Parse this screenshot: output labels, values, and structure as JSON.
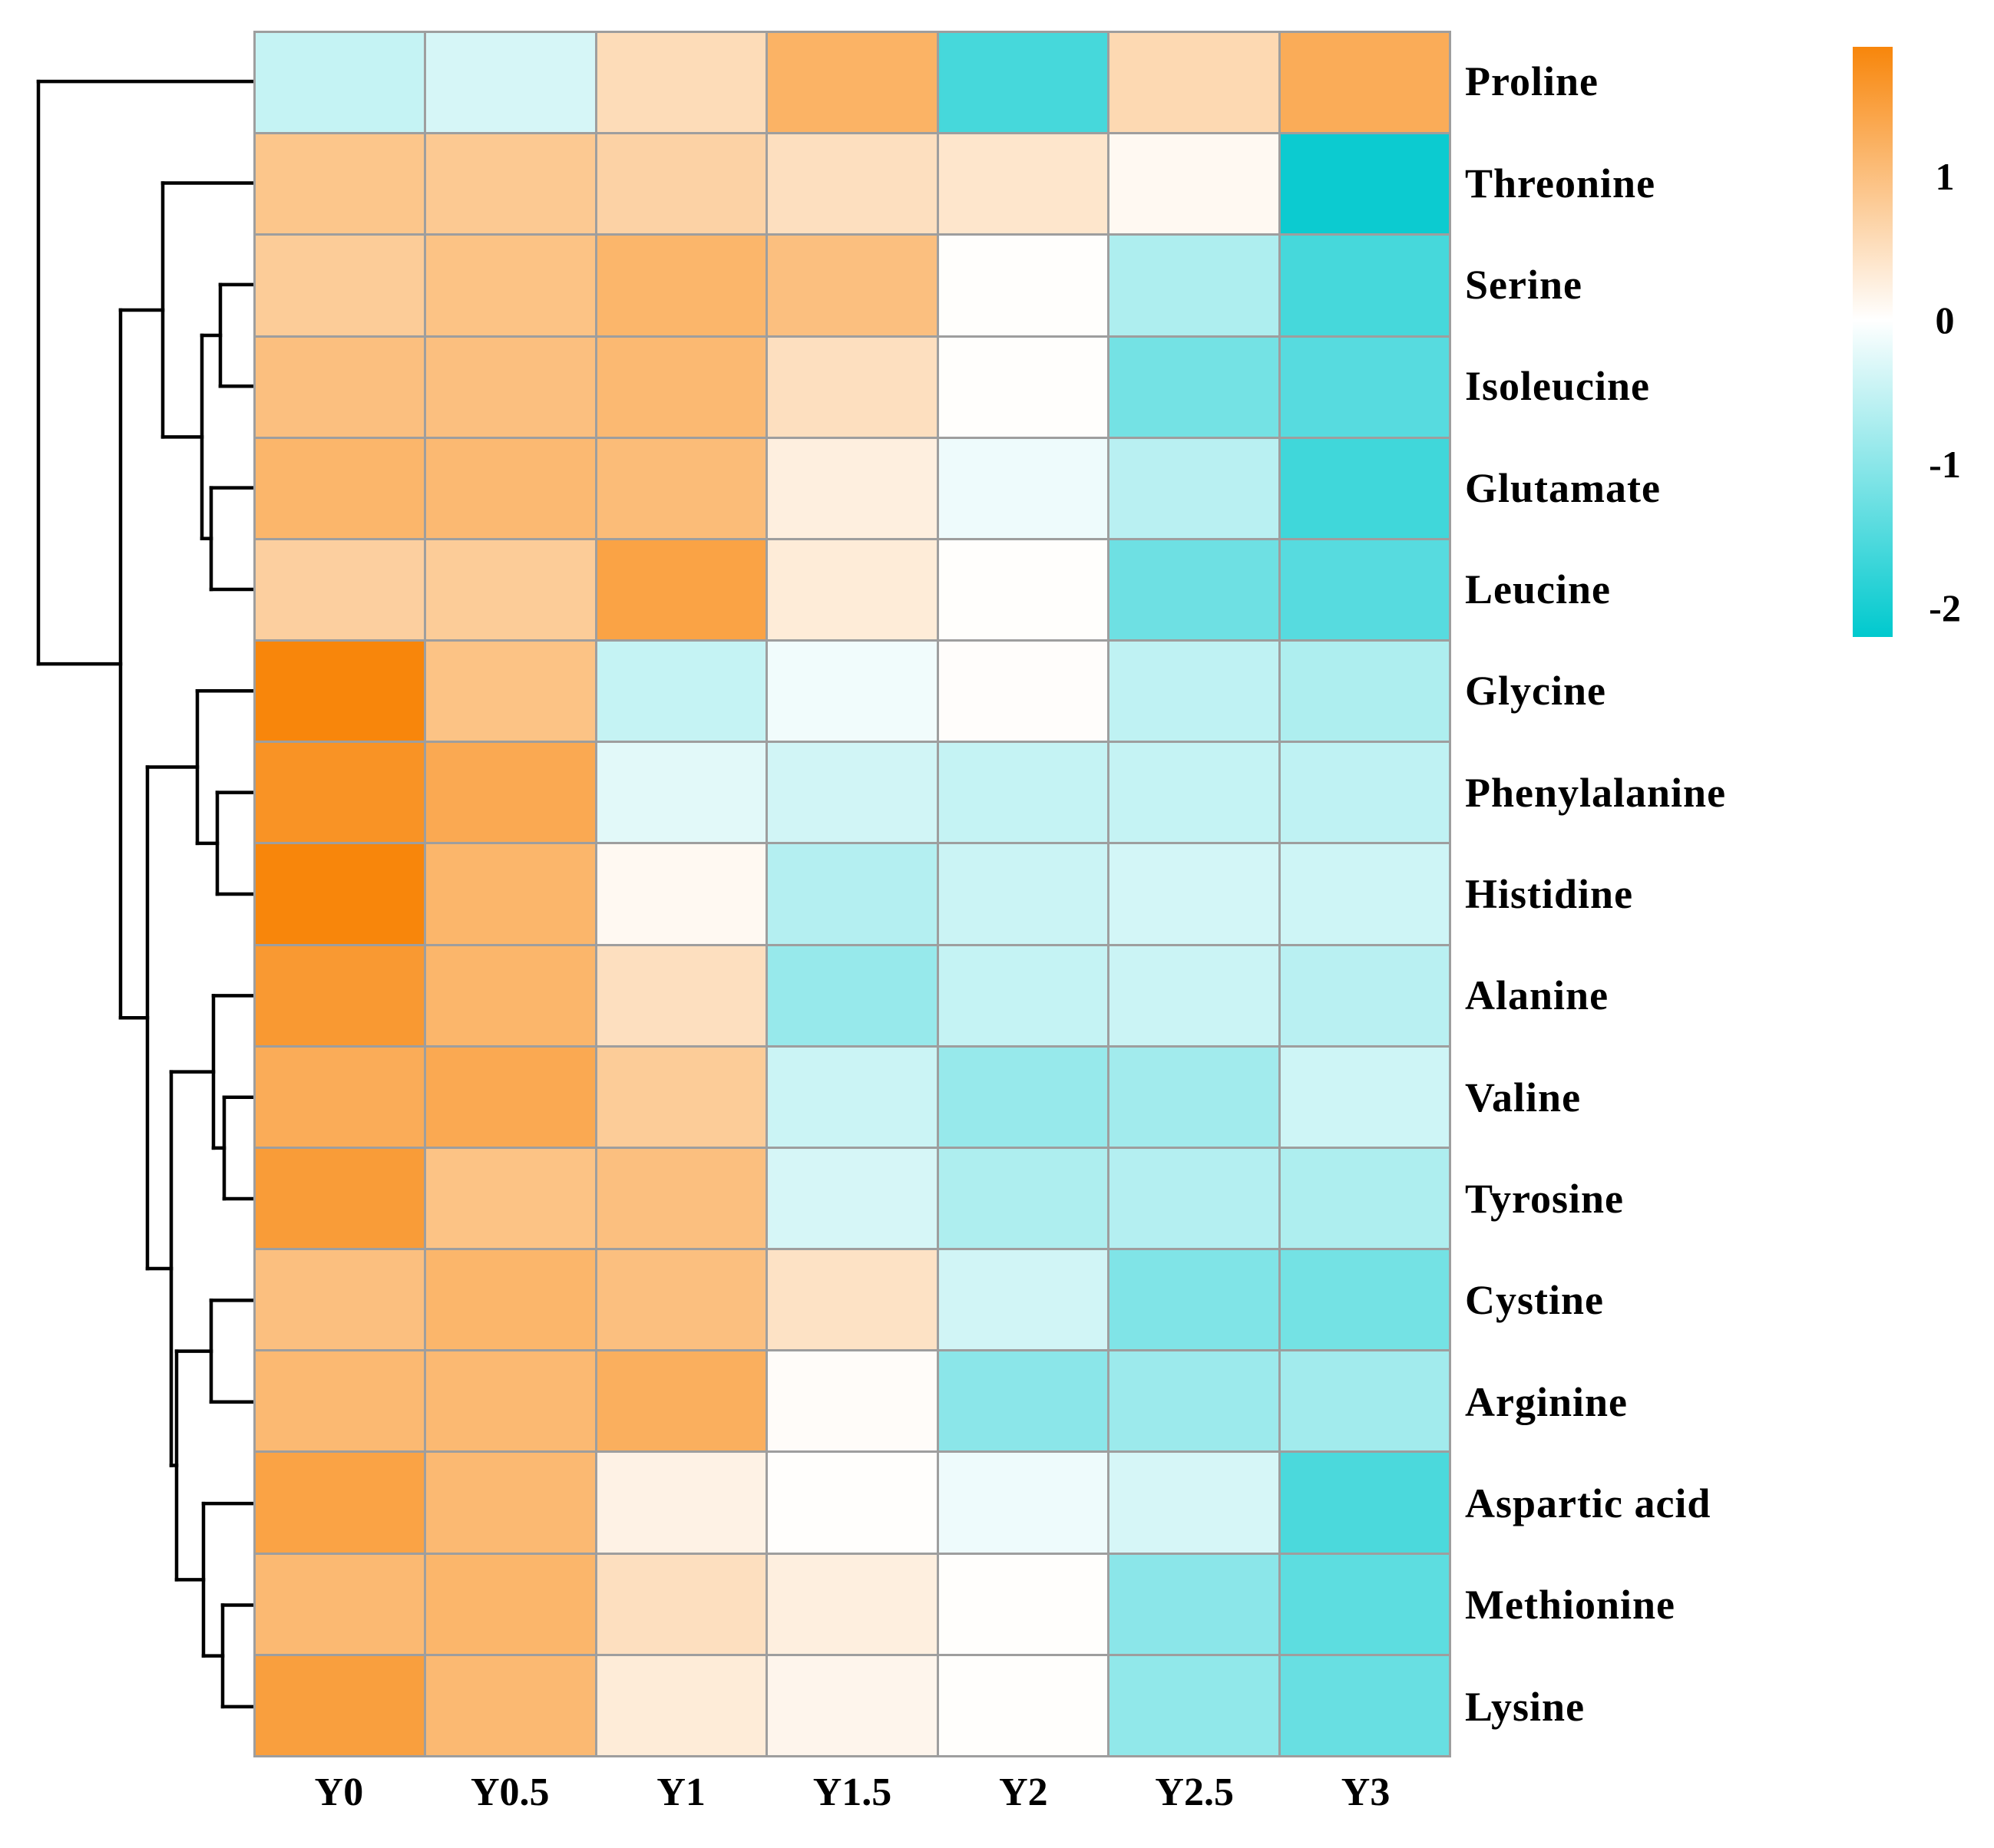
{
  "figure": {
    "background": "#ffffff",
    "grid_line_color": "#9e9e9e",
    "dendrogram_line_color": "#000000"
  },
  "chart_data": {
    "type": "heatmap",
    "title": "",
    "xlabel": "",
    "ylabel": "",
    "grid": true,
    "legend_position": "right",
    "row_dendrogram_side": "left",
    "columns": [
      "Y0",
      "Y0.5",
      "Y1",
      "Y1.5",
      "Y2",
      "Y2.5",
      "Y3"
    ],
    "rows": [
      "Proline",
      "Threonine",
      "Serine",
      "Isoleucine",
      "Glutamate",
      "Leucine",
      "Glycine",
      "Phenylalanine",
      "Histidine",
      "Alanine",
      "Valine",
      "Tyrosine",
      "Cystine",
      "Arginine",
      "Aspartic acid",
      "Methionine",
      "Lysine"
    ],
    "series": [
      {
        "name": "Proline",
        "values": [
          -0.5,
          -0.35,
          0.55,
          1.2,
          -1.6,
          0.6,
          1.3
        ]
      },
      {
        "name": "Threonine",
        "values": [
          0.9,
          0.85,
          0.7,
          0.5,
          0.4,
          0.1,
          -2.1
        ]
      },
      {
        "name": "Serine",
        "values": [
          0.8,
          0.95,
          1.15,
          1.0,
          0.02,
          -0.7,
          -1.6
        ]
      },
      {
        "name": "Isoleucine",
        "values": [
          1.0,
          1.0,
          1.1,
          0.5,
          0.02,
          -1.2,
          -1.45
        ]
      },
      {
        "name": "Glutamate",
        "values": [
          1.15,
          1.1,
          1.05,
          0.25,
          -0.15,
          -0.6,
          -1.65
        ]
      },
      {
        "name": "Leucine",
        "values": [
          0.75,
          0.8,
          1.45,
          0.3,
          0.02,
          -1.25,
          -1.45
        ]
      },
      {
        "name": "Glycine",
        "values": [
          1.9,
          0.95,
          -0.5,
          -0.12,
          0.03,
          -0.55,
          -0.7
        ]
      },
      {
        "name": "Phenylalanine",
        "values": [
          1.7,
          1.35,
          -0.25,
          -0.4,
          -0.5,
          -0.5,
          -0.55
        ]
      },
      {
        "name": "Histidine",
        "values": [
          1.9,
          1.15,
          0.1,
          -0.65,
          -0.45,
          -0.38,
          -0.42
        ]
      },
      {
        "name": "Alanine",
        "values": [
          1.6,
          1.15,
          0.5,
          -0.9,
          -0.5,
          -0.45,
          -0.6
        ]
      },
      {
        "name": "Valine",
        "values": [
          1.3,
          1.35,
          0.8,
          -0.45,
          -0.9,
          -0.8,
          -0.42
        ]
      },
      {
        "name": "Tyrosine",
        "values": [
          1.55,
          0.95,
          1.0,
          -0.35,
          -0.7,
          -0.65,
          -0.7
        ]
      },
      {
        "name": "Cystine",
        "values": [
          1.0,
          1.15,
          1.0,
          0.45,
          -0.4,
          -1.1,
          -1.2
        ]
      },
      {
        "name": "Arginine",
        "values": [
          1.1,
          1.1,
          1.25,
          0.05,
          -1.0,
          -0.85,
          -0.8
        ]
      },
      {
        "name": "Aspartic acid",
        "values": [
          1.45,
          1.1,
          0.2,
          0.02,
          -0.15,
          -0.35,
          -1.55
        ]
      },
      {
        "name": "Methionine",
        "values": [
          1.1,
          1.15,
          0.5,
          0.25,
          0.02,
          -1.0,
          -1.4
        ]
      },
      {
        "name": "Lysine",
        "values": [
          1.5,
          1.1,
          0.3,
          0.15,
          0.02,
          -0.95,
          -1.3
        ]
      }
    ],
    "color_scale": {
      "max_color": "#F8860B",
      "mid_color": "#FFFFFF",
      "min_color": "#00C9CE",
      "domain_max": 1.9,
      "domain_mid": 0,
      "domain_min": -2.2,
      "legend_ticks": [
        "1",
        "0",
        "-1",
        "-2"
      ],
      "legend_tick_values": [
        1,
        0,
        -1,
        -2
      ]
    },
    "row_dendrogram": {
      "x": 50,
      "c": [
        {
          "leaf": 0
        },
        {
          "x": 157,
          "c": [
            {
              "x": 212,
              "c": [
                {
                  "leaf": 1
                },
                {
                  "x": 263,
                  "c": [
                    {
                      "x": 287,
                      "c": [
                        {
                          "leaf": 2
                        },
                        {
                          "leaf": 3
                        }
                      ]
                    },
                    {
                      "x": 275,
                      "c": [
                        {
                          "leaf": 4
                        },
                        {
                          "leaf": 5
                        }
                      ]
                    }
                  ]
                }
              ]
            },
            {
              "x": 192,
              "c": [
                {
                  "x": 257,
                  "c": [
                    {
                      "leaf": 6
                    },
                    {
                      "x": 283,
                      "c": [
                        {
                          "leaf": 7
                        },
                        {
                          "leaf": 8
                        }
                      ]
                    }
                  ]
                },
                {
                  "x": 223,
                  "c": [
                    {
                      "x": 278,
                      "c": [
                        {
                          "leaf": 9
                        },
                        {
                          "x": 292,
                          "c": [
                            {
                              "leaf": 10
                            },
                            {
                              "leaf": 11
                            }
                          ]
                        }
                      ]
                    },
                    {
                      "x": 230,
                      "c": [
                        {
                          "x": 275,
                          "c": [
                            {
                              "leaf": 12
                            },
                            {
                              "leaf": 13
                            }
                          ]
                        },
                        {
                          "x": 265,
                          "c": [
                            {
                              "leaf": 14
                            },
                            {
                              "x": 290,
                              "c": [
                                {
                                  "leaf": 15
                                },
                                {
                                  "leaf": 16
                                }
                              ]
                            }
                          ]
                        }
                      ]
                    }
                  ]
                }
              ]
            }
          ]
        }
      ]
    }
  }
}
